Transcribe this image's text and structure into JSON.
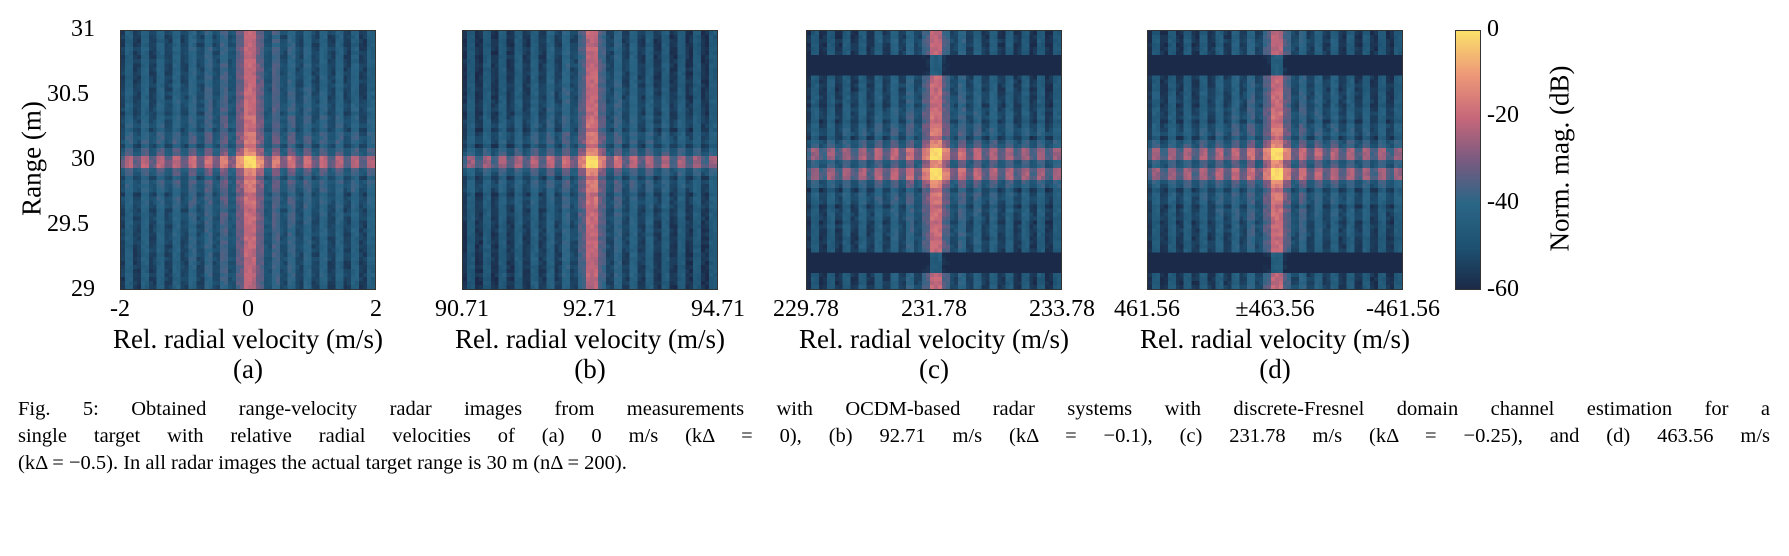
{
  "chart_data": [
    {
      "type": "heatmap",
      "panel": "(a)",
      "xlabel": "Rel. radial velocity (m/s)",
      "ylabel": "Range (m)",
      "xticks": [
        "-2",
        "0",
        "2"
      ],
      "yticks": [
        "31",
        "30.5",
        "30",
        "29.5",
        "29"
      ],
      "ylim": [
        29,
        31
      ],
      "peak": {
        "velocity": 0,
        "range": 30
      }
    },
    {
      "type": "heatmap",
      "panel": "(b)",
      "xlabel": "Rel. radial velocity (m/s)",
      "xticks": [
        "90.71",
        "92.71",
        "94.71"
      ],
      "ylim": [
        29,
        31
      ],
      "peak": {
        "velocity": 92.71,
        "range": 30
      }
    },
    {
      "type": "heatmap",
      "panel": "(c)",
      "xlabel": "Rel. radial velocity (m/s)",
      "xticks": [
        "229.78",
        "231.78",
        "233.78"
      ],
      "ylim": [
        29,
        31
      ],
      "peak": {
        "velocity": 231.78,
        "range": 30
      }
    },
    {
      "type": "heatmap",
      "panel": "(d)",
      "xlabel": "Rel. radial velocity (m/s)",
      "xticks": [
        "461.56",
        "±463.56",
        "-461.56"
      ],
      "ylim": [
        29,
        31
      ],
      "peak": {
        "velocity": 463.56,
        "range": 30
      }
    }
  ],
  "colorbar": {
    "label": "Norm. mag. (dB)",
    "ticks": [
      "0",
      "-20",
      "-40",
      "-60"
    ],
    "range": [
      -60,
      0
    ],
    "colors": [
      "#1b2a48",
      "#1e5272",
      "#2b6686",
      "#7a5a80",
      "#c8687a",
      "#ee9a78",
      "#fbe06a"
    ]
  },
  "caption": {
    "line1": "Fig. 5: Obtained range-velocity radar images from measurements with OCDM-based radar systems with discrete-Fresnel domain channel estimation for a",
    "line2": "single target with relative radial velocities of (a) 0 m/s (kΔ = 0), (b) 92.71 m/s (kΔ = −0.1), (c) 231.78 m/s (kΔ = −0.25), and (d) 463.56 m/s",
    "line3": "(kΔ = −0.5). In all radar images the actual target range is 30 m (nΔ = 200)."
  }
}
